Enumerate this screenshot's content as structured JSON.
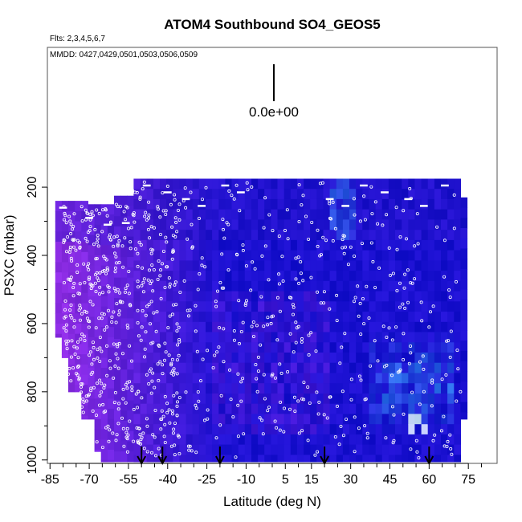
{
  "chart_data": {
    "type": "heatmap",
    "title": "ATOM4 Southbound SO4_GEOS5",
    "flights_note": "Flts: 2,3,4,5,6,7",
    "dates_note": "MMDD: 0427,0429,0501,0503,0506,0509",
    "xlabel": "Latitude (deg N)",
    "ylabel": "PSXC (mbar)",
    "x_ticks": [
      "-85",
      "-70",
      "-55",
      "-40",
      "-25",
      "-10",
      "5",
      "15",
      "30",
      "45",
      "60",
      "75"
    ],
    "x_tick_values": [
      -85,
      -70,
      -55,
      -40,
      -25,
      -10,
      5,
      15,
      30,
      45,
      60,
      75
    ],
    "y_ticks": [
      "200",
      "400",
      "600",
      "800",
      "1000"
    ],
    "y_tick_values": [
      200,
      400,
      600,
      800,
      1000
    ],
    "xlim": [
      -86,
      86
    ],
    "ylim": [
      1010,
      -210
    ],
    "legend_value": "0.0e+00",
    "arrow_latitudes": [
      -50,
      -42,
      -20,
      20,
      60
    ],
    "grid": false,
    "colors": {
      "low": "#8a2be2",
      "mid": "#1a10d0",
      "high": "#3cc8ff",
      "peak": "#f0ffff",
      "points": "#ffffff",
      "arrows": "#000000"
    }
  }
}
